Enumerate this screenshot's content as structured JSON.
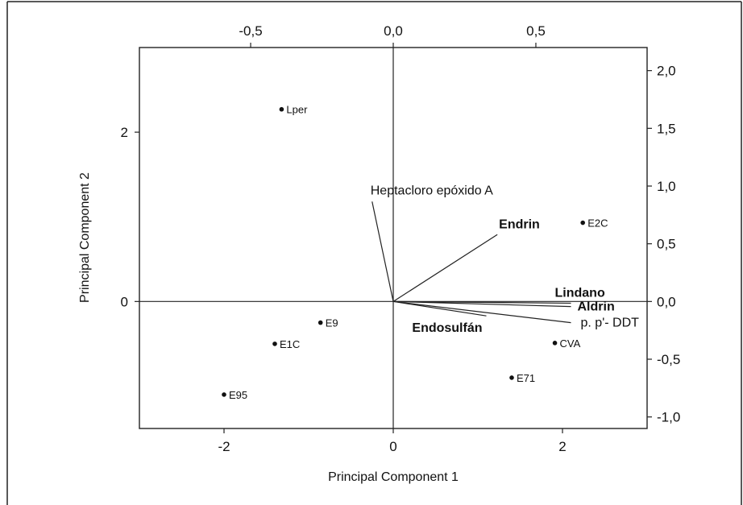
{
  "chart_data": {
    "type": "scatter",
    "title": "",
    "xlabel": "Principal Component 1",
    "ylabel": "Principal Component 2",
    "xlim": [
      -3,
      3
    ],
    "ylim": [
      -1.5,
      3
    ],
    "x_ticks": [
      -2,
      0,
      2
    ],
    "y_ticks": [
      0,
      2
    ],
    "top_axis": {
      "lim": [
        -0.89,
        0.89
      ],
      "ticks": [
        -0.5,
        0.0,
        0.5
      ],
      "tick_labels": [
        "-0,5",
        "0,0",
        "0,5"
      ]
    },
    "right_axis": {
      "lim": [
        -1.1,
        2.2
      ],
      "ticks": [
        -1.0,
        -0.5,
        0.0,
        0.5,
        1.0,
        1.5,
        2.0
      ],
      "tick_labels": [
        "-1,0",
        "-0,5",
        "0,0",
        "0,5",
        "1,0",
        "1,5",
        "2,0"
      ]
    },
    "points": [
      {
        "label": "Lper",
        "x": -1.32,
        "y": 2.27
      },
      {
        "label": "E2C",
        "x": 2.24,
        "y": 0.93
      },
      {
        "label": "E9",
        "x": -0.86,
        "y": -0.25
      },
      {
        "label": "E1C",
        "x": -1.4,
        "y": -0.5
      },
      {
        "label": "E95",
        "x": -2.0,
        "y": -1.1
      },
      {
        "label": "CVA",
        "x": 1.91,
        "y": -0.49
      },
      {
        "label": "E71",
        "x": 1.4,
        "y": -0.9
      }
    ],
    "loadings": [
      {
        "label": "Heptacloro epóxido A",
        "x": -0.25,
        "y": 1.18,
        "bold": false
      },
      {
        "label": "Endrin",
        "x": 1.23,
        "y": 0.79,
        "bold": true
      },
      {
        "label": "Lindano",
        "x": 2.1,
        "y": -0.02,
        "bold": true
      },
      {
        "label": "Aldrin",
        "x": 2.1,
        "y": -0.06,
        "bold": true
      },
      {
        "label": "p. p'- DDT",
        "x": 2.1,
        "y": -0.25,
        "bold": false
      },
      {
        "label": "Endosulfán",
        "x": 1.1,
        "y": -0.17,
        "bold": true
      }
    ],
    "grid": false,
    "legend": "none"
  }
}
